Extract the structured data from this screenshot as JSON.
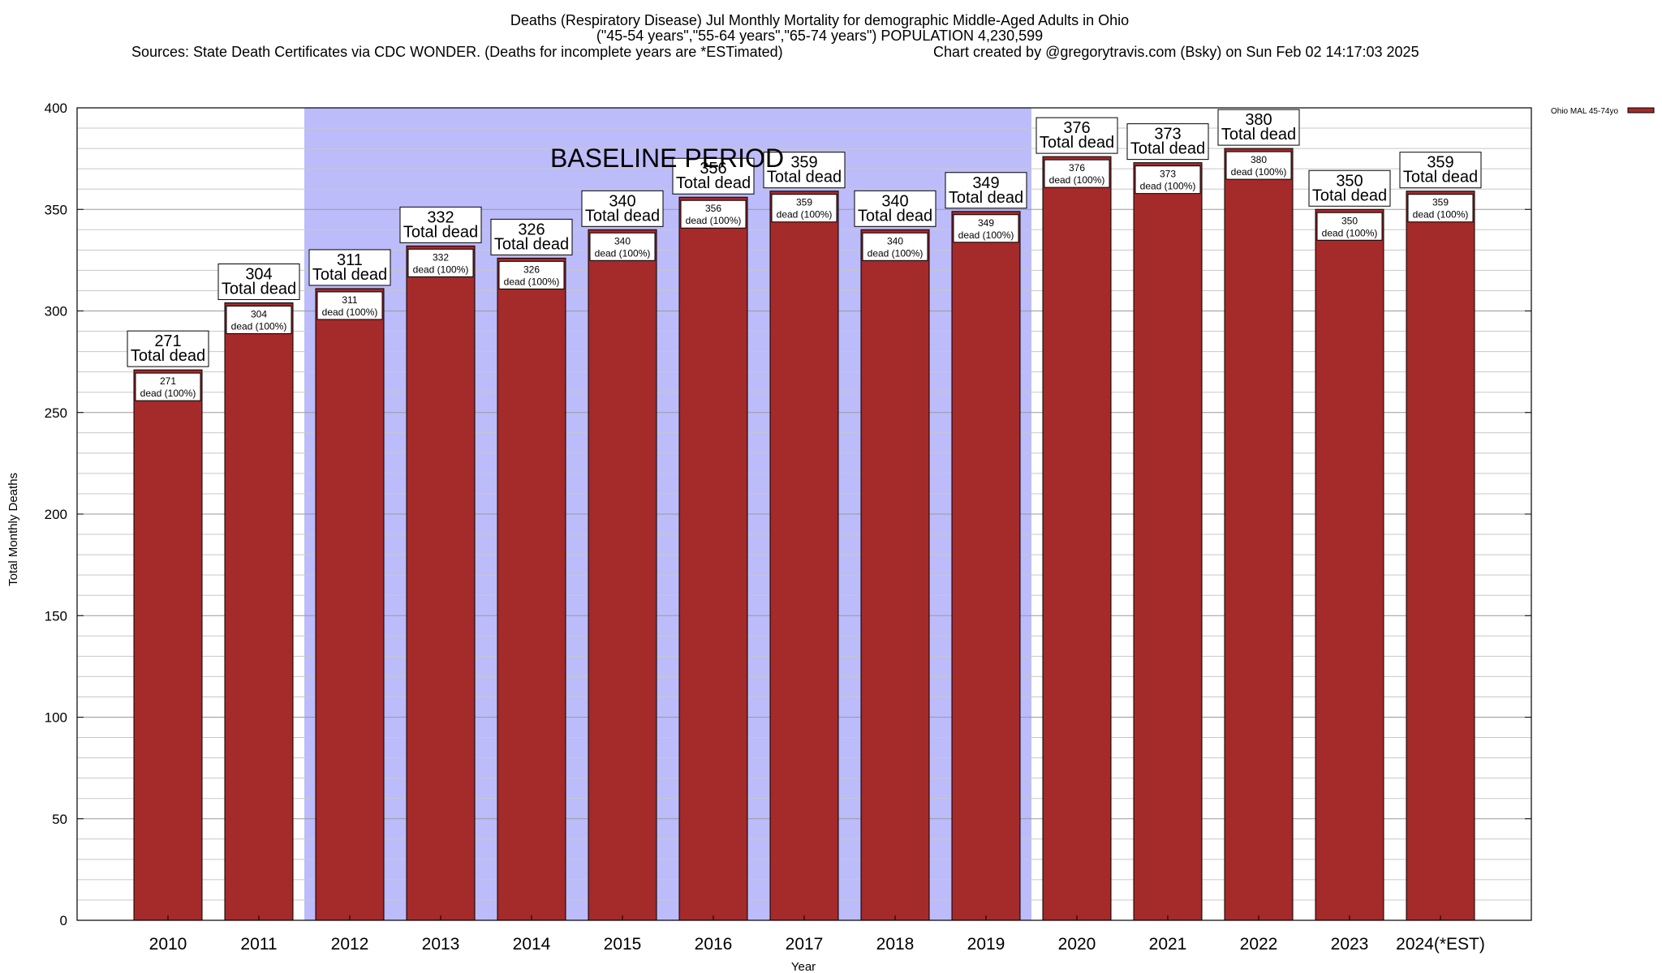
{
  "chart_data": {
    "type": "bar",
    "title_lines": [
      "Deaths (Respiratory Disease) Jul Monthly Mortality for demographic Middle-Aged Adults in Ohio",
      "(\"45-54 years\",\"55-64 years\",\"65-74 years\") POPULATION 4,230,599"
    ],
    "source_text": "Sources: State Death Certificates via CDC WONDER. (Deaths for incomplete years are *ESTimated)",
    "credit_text": "Chart created by @gregorytravis.com (Bsky) on Sun Feb 02 14:17:03 2025",
    "xlabel": "Year",
    "ylabel": "Total Monthly Deaths",
    "ylim": [
      0,
      400
    ],
    "y_ticks": [
      0,
      50,
      100,
      150,
      200,
      250,
      300,
      350,
      400
    ],
    "categories": [
      "2010",
      "2011",
      "2012",
      "2013",
      "2014",
      "2015",
      "2016",
      "2017",
      "2018",
      "2019",
      "2020",
      "2021",
      "2022",
      "2023",
      "2024(*EST)"
    ],
    "series": [
      {
        "name": "Ohio MAL 45-74yo",
        "color": "#a52a2a",
        "values": [
          271,
          304,
          311,
          332,
          326,
          340,
          356,
          359,
          340,
          349,
          376,
          373,
          380,
          350,
          359
        ]
      }
    ],
    "total_label_text": "Total dead",
    "inner_label_text": "dead (100%)",
    "baseline": {
      "label": "BASELINE PERIOD",
      "from": "2012",
      "to": "2019",
      "color": "#bcbcfb"
    },
    "grid": true,
    "legend_position": "top-right"
  }
}
